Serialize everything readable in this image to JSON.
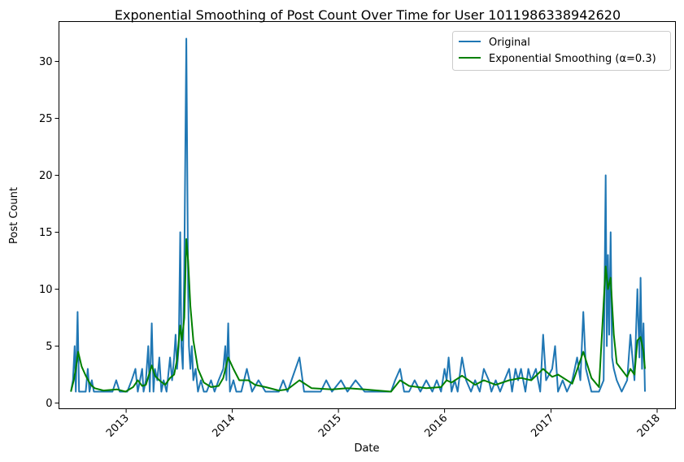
{
  "chart_data": {
    "type": "line",
    "title": "Exponential Smoothing of Post Count Over Time for User 1011986338942620",
    "xlabel": "Date",
    "ylabel": "Post Count",
    "x_ticks": [
      "2013",
      "2014",
      "2015",
      "2016",
      "2017",
      "2018"
    ],
    "y_ticks": [
      "0",
      "5",
      "10",
      "15",
      "20",
      "25",
      "30"
    ],
    "xlim": [
      "2012-05-15",
      "2018-03-05"
    ],
    "ylim": [
      -0.5,
      33.5
    ],
    "legend_position": "top-right",
    "grid": false,
    "series": [
      {
        "name": "Original",
        "color": "#1f77b4",
        "points": [
          [
            "2012-06-25",
            1
          ],
          [
            "2012-07-02",
            2
          ],
          [
            "2012-07-08",
            5
          ],
          [
            "2012-07-12",
            1
          ],
          [
            "2012-07-18",
            8
          ],
          [
            "2012-07-23",
            1
          ],
          [
            "2012-08-01",
            1
          ],
          [
            "2012-08-15",
            1
          ],
          [
            "2012-08-22",
            3
          ],
          [
            "2012-08-28",
            1
          ],
          [
            "2012-09-05",
            2
          ],
          [
            "2012-09-12",
            1
          ],
          [
            "2012-10-10",
            1
          ],
          [
            "2012-11-15",
            1
          ],
          [
            "2012-11-28",
            2
          ],
          [
            "2012-12-10",
            1
          ],
          [
            "2013-01-05",
            1
          ],
          [
            "2013-01-20",
            2
          ],
          [
            "2013-02-02",
            3
          ],
          [
            "2013-02-10",
            1
          ],
          [
            "2013-02-25",
            3
          ],
          [
            "2013-03-02",
            1
          ],
          [
            "2013-03-10",
            2
          ],
          [
            "2013-03-18",
            5
          ],
          [
            "2013-03-23",
            1
          ],
          [
            "2013-03-30",
            7
          ],
          [
            "2013-04-05",
            1
          ],
          [
            "2013-04-10",
            3
          ],
          [
            "2013-04-18",
            2
          ],
          [
            "2013-04-25",
            4
          ],
          [
            "2013-05-02",
            1
          ],
          [
            "2013-05-10",
            2
          ],
          [
            "2013-05-20",
            1
          ],
          [
            "2013-06-01",
            4
          ],
          [
            "2013-06-08",
            2
          ],
          [
            "2013-06-15",
            4
          ],
          [
            "2013-06-20",
            6
          ],
          [
            "2013-06-25",
            3
          ],
          [
            "2013-07-01",
            5
          ],
          [
            "2013-07-06",
            15
          ],
          [
            "2013-07-10",
            5
          ],
          [
            "2013-07-15",
            3
          ],
          [
            "2013-07-20",
            12
          ],
          [
            "2013-07-27",
            32
          ],
          [
            "2013-08-02",
            10
          ],
          [
            "2013-08-05",
            5
          ],
          [
            "2013-08-10",
            3
          ],
          [
            "2013-08-15",
            5
          ],
          [
            "2013-08-20",
            2
          ],
          [
            "2013-08-28",
            3
          ],
          [
            "2013-09-05",
            1
          ],
          [
            "2013-09-15",
            2
          ],
          [
            "2013-09-25",
            1
          ],
          [
            "2013-10-05",
            1
          ],
          [
            "2013-10-20",
            2
          ],
          [
            "2013-11-01",
            1
          ],
          [
            "2013-11-15",
            2
          ],
          [
            "2013-12-01",
            3
          ],
          [
            "2013-12-08",
            5
          ],
          [
            "2013-12-12",
            2
          ],
          [
            "2013-12-18",
            7
          ],
          [
            "2013-12-24",
            1
          ],
          [
            "2014-01-05",
            2
          ],
          [
            "2014-01-15",
            1
          ],
          [
            "2014-02-01",
            1
          ],
          [
            "2014-02-20",
            3
          ],
          [
            "2014-03-01",
            2
          ],
          [
            "2014-03-10",
            1
          ],
          [
            "2014-04-01",
            2
          ],
          [
            "2014-04-25",
            1
          ],
          [
            "2014-05-15",
            1
          ],
          [
            "2014-06-10",
            1
          ],
          [
            "2014-06-25",
            2
          ],
          [
            "2014-07-10",
            1
          ],
          [
            "2014-08-20",
            4
          ],
          [
            "2014-09-05",
            1
          ],
          [
            "2014-10-01",
            1
          ],
          [
            "2014-11-01",
            1
          ],
          [
            "2014-11-20",
            2
          ],
          [
            "2014-12-10",
            1
          ],
          [
            "2015-01-10",
            2
          ],
          [
            "2015-02-01",
            1
          ],
          [
            "2015-03-01",
            2
          ],
          [
            "2015-04-01",
            1
          ],
          [
            "2015-05-10",
            1
          ],
          [
            "2015-06-01",
            1
          ],
          [
            "2015-07-01",
            1
          ],
          [
            "2015-07-15",
            2
          ],
          [
            "2015-08-01",
            3
          ],
          [
            "2015-08-15",
            1
          ],
          [
            "2015-09-01",
            1
          ],
          [
            "2015-09-20",
            2
          ],
          [
            "2015-10-10",
            1
          ],
          [
            "2015-10-30",
            2
          ],
          [
            "2015-11-20",
            1
          ],
          [
            "2015-12-05",
            2
          ],
          [
            "2015-12-20",
            1
          ],
          [
            "2016-01-01",
            3
          ],
          [
            "2016-01-08",
            2
          ],
          [
            "2016-01-15",
            4
          ],
          [
            "2016-01-25",
            1
          ],
          [
            "2016-02-05",
            2
          ],
          [
            "2016-02-15",
            1
          ],
          [
            "2016-03-01",
            4
          ],
          [
            "2016-03-15",
            2
          ],
          [
            "2016-04-01",
            1
          ],
          [
            "2016-04-15",
            2
          ],
          [
            "2016-05-01",
            1
          ],
          [
            "2016-05-15",
            3
          ],
          [
            "2016-06-01",
            2
          ],
          [
            "2016-06-10",
            1
          ],
          [
            "2016-06-25",
            2
          ],
          [
            "2016-07-10",
            1
          ],
          [
            "2016-07-25",
            2
          ],
          [
            "2016-08-10",
            3
          ],
          [
            "2016-08-20",
            1
          ],
          [
            "2016-09-01",
            3
          ],
          [
            "2016-09-10",
            2
          ],
          [
            "2016-09-20",
            3
          ],
          [
            "2016-10-05",
            1
          ],
          [
            "2016-10-15",
            3
          ],
          [
            "2016-10-25",
            2
          ],
          [
            "2016-11-10",
            3
          ],
          [
            "2016-11-25",
            1
          ],
          [
            "2016-12-05",
            6
          ],
          [
            "2016-12-15",
            2
          ],
          [
            "2017-01-05",
            3
          ],
          [
            "2017-01-15",
            5
          ],
          [
            "2017-01-25",
            1
          ],
          [
            "2017-02-10",
            2
          ],
          [
            "2017-02-25",
            1
          ],
          [
            "2017-03-15",
            2
          ],
          [
            "2017-04-01",
            4
          ],
          [
            "2017-04-12",
            2
          ],
          [
            "2017-04-22",
            8
          ],
          [
            "2017-05-01",
            3
          ],
          [
            "2017-05-20",
            1
          ],
          [
            "2017-06-15",
            1
          ],
          [
            "2017-07-01",
            2
          ],
          [
            "2017-07-08",
            20
          ],
          [
            "2017-07-12",
            5
          ],
          [
            "2017-07-16",
            13
          ],
          [
            "2017-07-20",
            6
          ],
          [
            "2017-07-25",
            15
          ],
          [
            "2017-07-30",
            4
          ],
          [
            "2017-08-05",
            3
          ],
          [
            "2017-08-15",
            2
          ],
          [
            "2017-09-01",
            1
          ],
          [
            "2017-09-20",
            2
          ],
          [
            "2017-10-01",
            6
          ],
          [
            "2017-10-15",
            2
          ],
          [
            "2017-10-25",
            10
          ],
          [
            "2017-11-01",
            4
          ],
          [
            "2017-11-05",
            11
          ],
          [
            "2017-11-10",
            3
          ],
          [
            "2017-11-15",
            7
          ],
          [
            "2017-11-20",
            1
          ]
        ]
      },
      {
        "name": "Exponential Smoothing (α=0.3)",
        "color": "#008000",
        "points": [
          [
            "2012-06-25",
            1
          ],
          [
            "2012-07-05",
            2
          ],
          [
            "2012-07-12",
            3
          ],
          [
            "2012-07-20",
            4.5
          ],
          [
            "2012-08-01",
            3.2
          ],
          [
            "2012-08-15",
            2.4
          ],
          [
            "2012-09-01",
            1.6
          ],
          [
            "2012-09-15",
            1.3
          ],
          [
            "2012-10-15",
            1.1
          ],
          [
            "2012-11-30",
            1.2
          ],
          [
            "2012-12-30",
            1
          ],
          [
            "2013-01-25",
            1.4
          ],
          [
            "2013-02-10",
            2.0
          ],
          [
            "2013-02-25",
            1.5
          ],
          [
            "2013-03-10",
            1.6
          ],
          [
            "2013-03-30",
            3.3
          ],
          [
            "2013-04-10",
            2.4
          ],
          [
            "2013-04-25",
            2.0
          ],
          [
            "2013-05-15",
            1.6
          ],
          [
            "2013-06-01",
            2.2
          ],
          [
            "2013-06-15",
            2.5
          ],
          [
            "2013-06-25",
            3.8
          ],
          [
            "2013-07-06",
            6.8
          ],
          [
            "2013-07-12",
            5.5
          ],
          [
            "2013-07-20",
            7.5
          ],
          [
            "2013-07-27",
            14.4
          ],
          [
            "2013-08-02",
            12.5
          ],
          [
            "2013-08-10",
            8.5
          ],
          [
            "2013-08-20",
            5.5
          ],
          [
            "2013-09-05",
            3.0
          ],
          [
            "2013-09-25",
            1.8
          ],
          [
            "2013-10-20",
            1.4
          ],
          [
            "2013-11-15",
            1.5
          ],
          [
            "2013-12-01",
            2.2
          ],
          [
            "2013-12-18",
            4.0
          ],
          [
            "2014-01-05",
            3.0
          ],
          [
            "2014-01-25",
            2.0
          ],
          [
            "2014-02-25",
            2.0
          ],
          [
            "2014-03-20",
            1.6
          ],
          [
            "2014-04-25",
            1.4
          ],
          [
            "2014-06-10",
            1.1
          ],
          [
            "2014-07-10",
            1.2
          ],
          [
            "2014-08-20",
            2.0
          ],
          [
            "2014-10-01",
            1.3
          ],
          [
            "2014-12-10",
            1.2
          ],
          [
            "2015-02-01",
            1.3
          ],
          [
            "2015-04-01",
            1.2
          ],
          [
            "2015-07-01",
            1.0
          ],
          [
            "2015-08-01",
            2.0
          ],
          [
            "2015-09-01",
            1.5
          ],
          [
            "2015-10-30",
            1.3
          ],
          [
            "2015-12-20",
            1.4
          ],
          [
            "2016-01-08",
            2.0
          ],
          [
            "2016-01-25",
            1.8
          ],
          [
            "2016-03-01",
            2.4
          ],
          [
            "2016-04-15",
            1.6
          ],
          [
            "2016-05-15",
            2.0
          ],
          [
            "2016-06-25",
            1.6
          ],
          [
            "2016-08-10",
            2.0
          ],
          [
            "2016-09-20",
            2.2
          ],
          [
            "2016-10-25",
            2.0
          ],
          [
            "2016-12-05",
            3.0
          ],
          [
            "2017-01-05",
            2.3
          ],
          [
            "2017-01-25",
            2.5
          ],
          [
            "2017-03-15",
            1.7
          ],
          [
            "2017-04-22",
            4.5
          ],
          [
            "2017-05-20",
            2.2
          ],
          [
            "2017-06-15",
            1.4
          ],
          [
            "2017-07-08",
            12.0
          ],
          [
            "2017-07-16",
            10.0
          ],
          [
            "2017-07-25",
            11.0
          ],
          [
            "2017-08-05",
            6.0
          ],
          [
            "2017-08-15",
            3.5
          ],
          [
            "2017-09-20",
            2.3
          ],
          [
            "2017-10-01",
            3.0
          ],
          [
            "2017-10-15",
            2.5
          ],
          [
            "2017-10-25",
            5.5
          ],
          [
            "2017-11-05",
            5.8
          ],
          [
            "2017-11-15",
            4.5
          ],
          [
            "2017-11-20",
            3.0
          ]
        ]
      }
    ]
  }
}
